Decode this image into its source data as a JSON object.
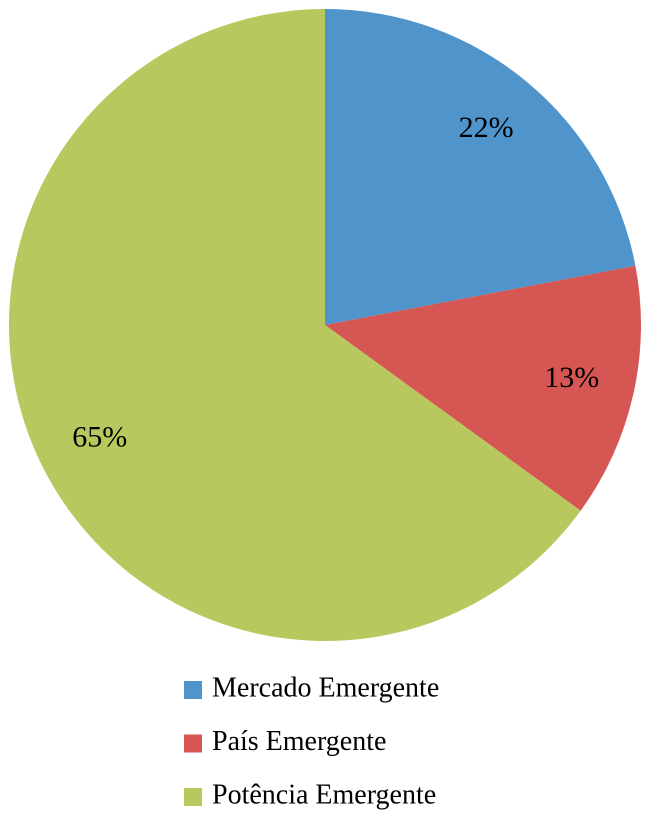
{
  "chart_data": {
    "type": "pie",
    "categories": [
      "Mercado Emergente",
      "País Emergente",
      "Potência Emergente"
    ],
    "values": [
      22,
      13,
      65
    ],
    "value_labels": [
      "22%",
      "13%",
      "65%"
    ],
    "colors": [
      "#5094cc",
      "#d55653",
      "#b8c85e"
    ]
  }
}
